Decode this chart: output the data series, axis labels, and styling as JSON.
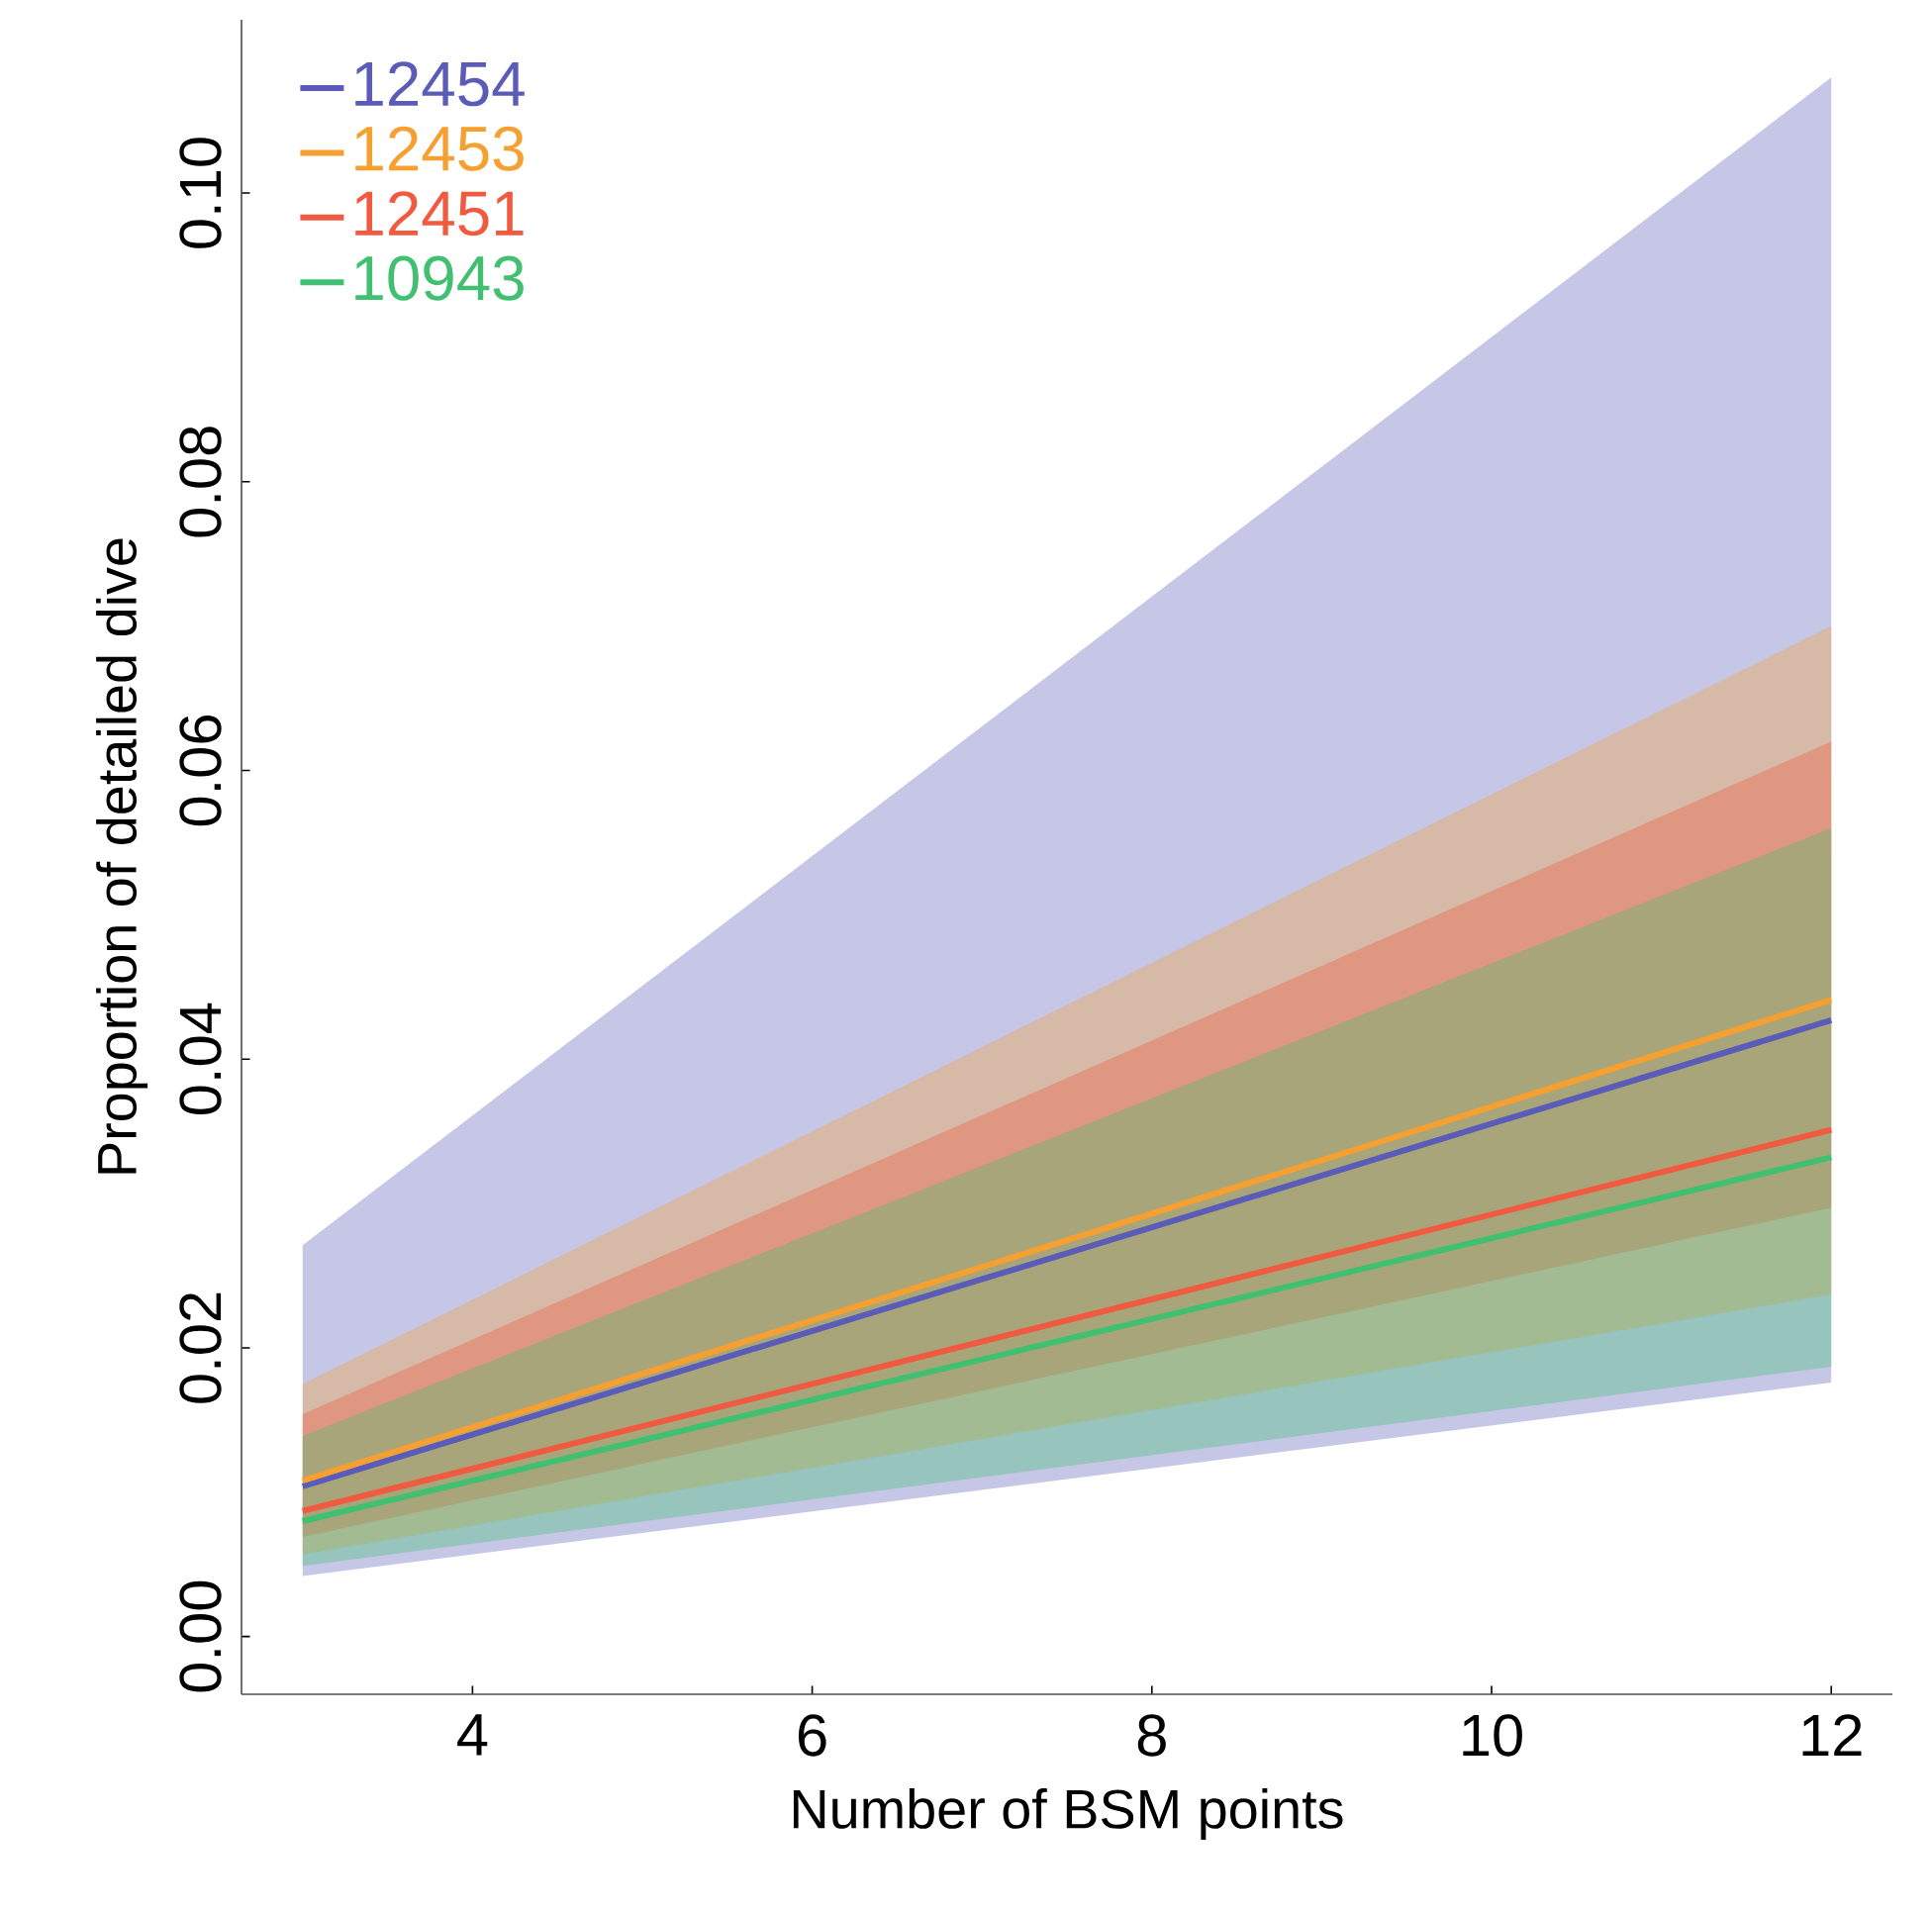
{
  "chart_data": {
    "type": "line",
    "xlabel": "Number of BSM points",
    "ylabel": "Proportion of detailed dive",
    "xlim": [
      2.64,
      12.36
    ],
    "ylim": [
      -0.004,
      0.112
    ],
    "xticks": [
      4,
      6,
      8,
      10,
      12
    ],
    "yticks": [
      {
        "value": 0,
        "label": "0.00"
      },
      {
        "value": 0.02,
        "label": "0.02"
      },
      {
        "value": 0.04,
        "label": "0.04"
      },
      {
        "value": 0.06,
        "label": "0.06"
      },
      {
        "value": 0.08,
        "label": "0.08"
      },
      {
        "value": 0.1,
        "label": "0.10"
      }
    ],
    "legend": "top left",
    "x": [
      3,
      12
    ],
    "grid": false,
    "marker": "none",
    "line_style": "solid",
    "series": [
      {
        "name": "12454",
        "color": "#5b5bb8",
        "values": [
          0.0104,
          0.0427
        ],
        "lower": [
          0.0042,
          0.0176
        ],
        "upper": [
          0.0271,
          0.108
        ]
      },
      {
        "name": "12453",
        "color": "#f5a030",
        "values": [
          0.0108,
          0.0441
        ],
        "lower": [
          0.0057,
          0.0237
        ],
        "upper": [
          0.0175,
          0.07
        ]
      },
      {
        "name": "12451",
        "color": "#f05a40",
        "values": [
          0.0087,
          0.0351
        ],
        "lower": [
          0.0069,
          0.0297
        ],
        "upper": [
          0.0154,
          0.062
        ]
      },
      {
        "name": "10943",
        "color": "#40c070",
        "values": [
          0.008,
          0.0332
        ],
        "lower": [
          0.0049,
          0.0187
        ],
        "upper": [
          0.0139,
          0.056
        ]
      }
    ]
  }
}
